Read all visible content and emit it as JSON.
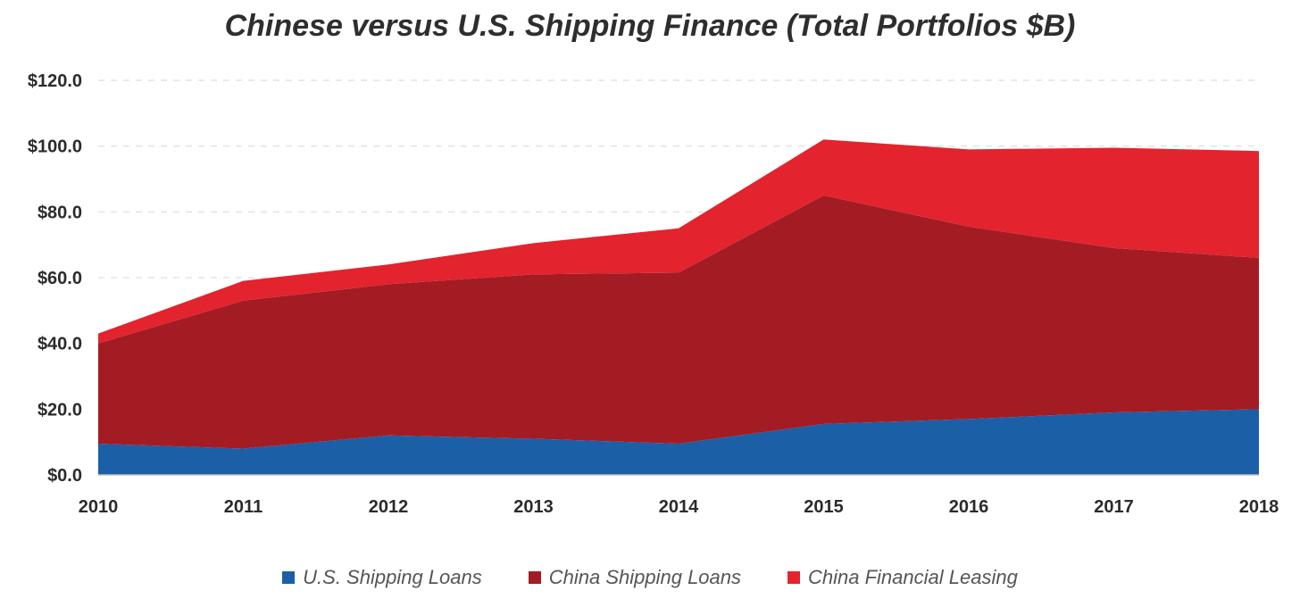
{
  "chart_data": {
    "type": "area",
    "stacked": true,
    "title": "Chinese versus U.S. Shipping Finance (Total Portfolios $B)",
    "xlabel": "",
    "ylabel": "",
    "categories": [
      "2010",
      "2011",
      "2012",
      "2013",
      "2014",
      "2015",
      "2016",
      "2017",
      "2018"
    ],
    "ylim": [
      0,
      120
    ],
    "yticks": [
      "$0.0",
      "$20.0",
      "$40.0",
      "$60.0",
      "$80.0",
      "$100.0",
      "$120.0"
    ],
    "grid": "horizontal dashed",
    "legend_position": "bottom",
    "series": [
      {
        "name": "U.S. Shipping Loans",
        "color": "#1b5fa6",
        "values": [
          9.5,
          8.0,
          12.0,
          11.0,
          9.5,
          15.5,
          17.0,
          19.0,
          20.0
        ]
      },
      {
        "name": "China Shipping Loans",
        "color": "#a31c24",
        "values": [
          30.5,
          45.0,
          46.0,
          50.0,
          52.0,
          69.5,
          58.5,
          50.0,
          46.0
        ]
      },
      {
        "name": "China Financial Leasing",
        "color": "#e3232d",
        "values": [
          3.0,
          6.0,
          6.0,
          9.5,
          13.5,
          17.0,
          23.5,
          30.5,
          32.5
        ]
      }
    ]
  }
}
